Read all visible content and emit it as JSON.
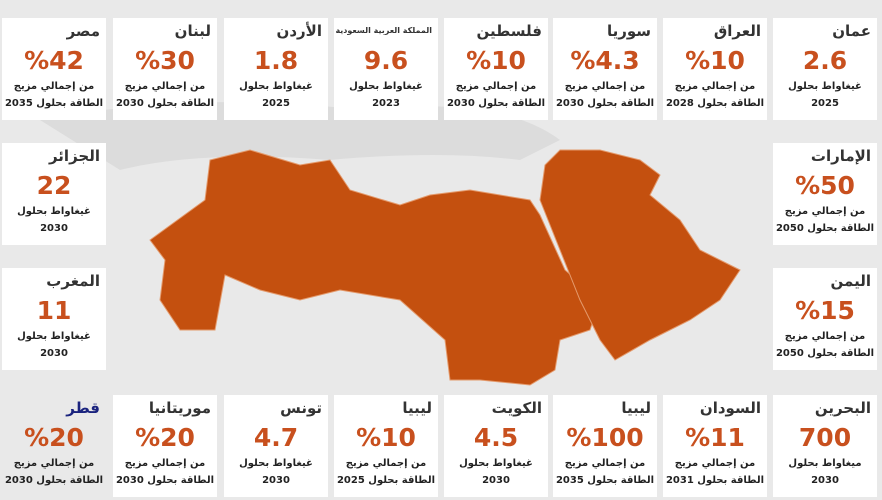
{
  "cards": [
    {
      "country": "مصر",
      "value": "%42",
      "lines": [
        "من إجمالي مزيج",
        "الطاقة بحلول 2035"
      ]
    },
    {
      "country": "لبنان",
      "value": "%30",
      "lines": [
        "من إجمالي مزيج",
        "الطاقة بحلول 2030"
      ]
    },
    {
      "country": "الأردن",
      "value": "1.8",
      "lines": [
        "غيغاواط بحلول",
        "2025"
      ]
    },
    {
      "country": "المملكة العربية السعودية",
      "value": "9.6",
      "lines": [
        "غيغاواط بحلول",
        "2023"
      ]
    },
    {
      "country": "فلسطين",
      "value": "%10",
      "lines": [
        "من إجمالي مزيج",
        "الطاقة بحلول 2030"
      ]
    },
    {
      "country": "سوريا",
      "value": "%4.3",
      "lines": [
        "من إجمالي مزيج",
        "الطاقة بحلول 2030"
      ]
    },
    {
      "country": "العراق",
      "value": "%10",
      "lines": [
        "من إجمالي مزيج",
        "الطاقة بحلول 2028"
      ]
    },
    {
      "country": "عمان",
      "value": "2.6",
      "lines": [
        "غيغاواط بحلول",
        "2025"
      ]
    },
    {
      "country": "الجزائر",
      "value": "22",
      "lines": [
        "غيغاواط بحلول",
        "2030"
      ]
    },
    {
      "country": "المغرب",
      "value": "11",
      "lines": [
        "غيغاواط بحلول",
        "2030"
      ]
    },
    {
      "country": "الإمارات",
      "value": "%50",
      "lines": [
        "من إجمالي مزيج",
        "الطاقة بحلول 2050"
      ]
    },
    {
      "country": "اليمن",
      "value": "%15",
      "lines": [
        "من إجمالي مزيج",
        "الطاقة بحلول 2050"
      ]
    },
    {
      "country": "قطر",
      "value": "%20",
      "lines": [
        "من إجمالي مزيج",
        "الطاقة بحلول 2030"
      ]
    },
    {
      "country": "موريتانيا",
      "value": "%20",
      "lines": [
        "من إجمالي مزيج",
        "الطاقة بحلول 2030"
      ]
    },
    {
      "country": "تونس",
      "value": "4.7",
      "lines": [
        "غيغاواط بحلول",
        "2030"
      ]
    },
    {
      "country": "ليبيا",
      "value": "%10",
      "lines": [
        "من إجمالي مزيج",
        "الطاقة بحلول 2025"
      ]
    },
    {
      "country": "الكويت",
      "value": "4.5",
      "lines": [
        "غيغاواط بحلول",
        "2030"
      ]
    },
    {
      "country": "ليبيا",
      "value": "%100",
      "lines": [
        "من إجمالي مزيج",
        "الطاقة بحلول 2035"
      ]
    },
    {
      "country": "السودان",
      "value": "%11",
      "lines": [
        "من إجمالي مزيج",
        "الطاقة بحلول 2031"
      ]
    },
    {
      "country": "البحرين",
      "value": "700",
      "lines": [
        "ميغاواط بحلول",
        "2030"
      ]
    }
  ]
}
